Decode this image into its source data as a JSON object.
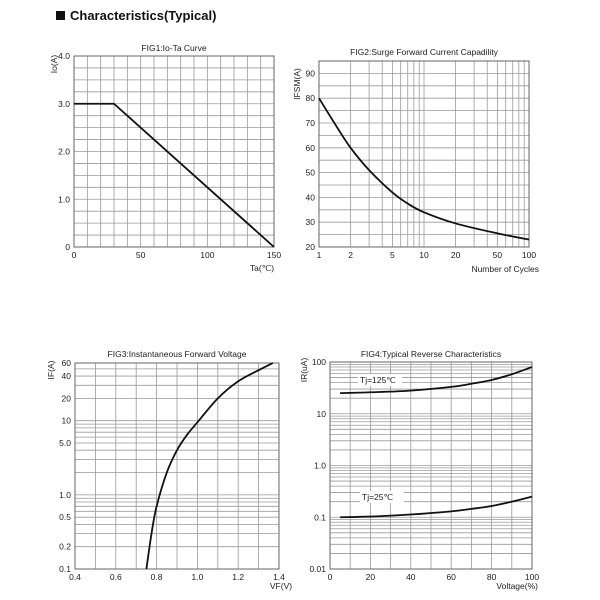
{
  "header": {
    "title": "Characteristics(Typical)"
  },
  "chart_data": [
    {
      "type": "line",
      "title": "FIG1:Io-Ta Curve",
      "xlabel": "Ta(℃)",
      "ylabel": "Io(A)",
      "xscale": "linear",
      "yscale": "linear",
      "xlim": [
        0,
        150
      ],
      "ylim": [
        0,
        4
      ],
      "xticks": [
        0,
        50,
        100,
        150
      ],
      "xtick_labels": [
        "0",
        "50",
        "100",
        "150"
      ],
      "yticks": [
        0,
        1,
        2,
        3,
        4
      ],
      "ytick_labels": [
        "0",
        "1.0",
        "2.0",
        "3.0",
        "4.0"
      ],
      "xgrid": [
        0,
        10,
        20,
        30,
        40,
        50,
        60,
        70,
        80,
        90,
        100,
        110,
        120,
        130,
        140,
        150
      ],
      "ygrid": [
        0,
        0.25,
        0.5,
        0.75,
        1,
        1.25,
        1.5,
        1.75,
        2,
        2.25,
        2.5,
        2.75,
        3,
        3.25,
        3.5,
        3.75,
        4
      ],
      "series": [
        {
          "name": "Io",
          "x": [
            0,
            30,
            150
          ],
          "y": [
            3.0,
            3.0,
            0
          ]
        }
      ]
    },
    {
      "type": "line",
      "title": "FIG2:Surge Forward Current Capadility",
      "xlabel": "Number of Cycles",
      "ylabel": "IFSM(A)",
      "xscale": "log",
      "yscale": "linear",
      "xlim": [
        1,
        100
      ],
      "ylim": [
        20,
        95
      ],
      "xticks": [
        1,
        2,
        5,
        10,
        20,
        50,
        100
      ],
      "xtick_labels": [
        "1",
        "2",
        "5",
        "10",
        "20",
        "50",
        "100"
      ],
      "yticks": [
        20,
        30,
        40,
        50,
        60,
        70,
        80,
        90
      ],
      "ytick_labels": [
        "20",
        "30",
        "40",
        "50",
        "60",
        "70",
        "80",
        "90"
      ],
      "xgrid": [
        1,
        2,
        3,
        4,
        5,
        6,
        7,
        8,
        9,
        10,
        20,
        30,
        40,
        50,
        60,
        70,
        80,
        90,
        100
      ],
      "ygrid": [
        20,
        25,
        30,
        35,
        40,
        45,
        50,
        55,
        60,
        65,
        70,
        75,
        80,
        85,
        90,
        95
      ],
      "series": [
        {
          "name": "IFSM",
          "x": [
            1,
            1.5,
            2,
            3,
            5,
            7,
            10,
            20,
            50,
            100
          ],
          "y": [
            80,
            68,
            60,
            51,
            42,
            37.5,
            34,
            29.5,
            25.5,
            23
          ]
        }
      ]
    },
    {
      "type": "line",
      "title": "FIG3:Instantaneous Forward Voltage",
      "xlabel": "VF(V)",
      "ylabel": "IF(A)",
      "xscale": "linear",
      "yscale": "log",
      "xlim": [
        0.4,
        1.4
      ],
      "ylim": [
        0.1,
        60
      ],
      "xticks": [
        0.4,
        0.6,
        0.8,
        1.0,
        1.2,
        1.4
      ],
      "xtick_labels": [
        "0.4",
        "0.6",
        "0.8",
        "1.0",
        "1.2",
        "1.4"
      ],
      "yticks": [
        0.1,
        0.2,
        0.5,
        1,
        5,
        10,
        20,
        40,
        60
      ],
      "ytick_labels": [
        "0.1",
        "0.2",
        "0.5",
        "1.0",
        "5.0",
        "10",
        "20",
        "40",
        "60"
      ],
      "xgrid": [
        0.4,
        0.5,
        0.6,
        0.7,
        0.8,
        0.9,
        1.0,
        1.1,
        1.2,
        1.3,
        1.4
      ],
      "ygrid": [
        0.1,
        0.2,
        0.3,
        0.4,
        0.5,
        0.6,
        0.7,
        0.8,
        0.9,
        1,
        2,
        3,
        4,
        5,
        6,
        7,
        8,
        9,
        10,
        20,
        30,
        40,
        50,
        60
      ],
      "series": [
        {
          "name": "IF",
          "x": [
            0.75,
            0.775,
            0.8,
            0.85,
            0.9,
            0.95,
            1.0,
            1.1,
            1.2,
            1.3,
            1.37
          ],
          "y": [
            0.1,
            0.3,
            0.7,
            2,
            4,
            6.5,
            9.5,
            20,
            34,
            48,
            60
          ]
        }
      ]
    },
    {
      "type": "line",
      "title": "FIG4:Typical Reverse Characteristics",
      "xlabel": "Voltage(%)",
      "ylabel": "IR(uA)",
      "xscale": "linear",
      "yscale": "log",
      "xlim": [
        0,
        100
      ],
      "ylim": [
        0.01,
        100
      ],
      "xticks": [
        0,
        20,
        40,
        60,
        80,
        100
      ],
      "xtick_labels": [
        "0",
        "20",
        "40",
        "60",
        "80",
        "100"
      ],
      "yticks": [
        0.01,
        0.1,
        1,
        10,
        100
      ],
      "ytick_labels": [
        "0.01",
        "0.1",
        "1.0",
        "10",
        "100"
      ],
      "xgrid": [
        0,
        10,
        20,
        30,
        40,
        50,
        60,
        70,
        80,
        90,
        100
      ],
      "ygrid": [
        0.01,
        0.02,
        0.03,
        0.04,
        0.05,
        0.06,
        0.07,
        0.08,
        0.09,
        0.1,
        0.2,
        0.3,
        0.4,
        0.5,
        0.6,
        0.7,
        0.8,
        0.9,
        1,
        2,
        3,
        4,
        5,
        6,
        7,
        8,
        9,
        10,
        20,
        30,
        40,
        50,
        60,
        70,
        80,
        90,
        100
      ],
      "series": [
        {
          "name": "Tj=125℃",
          "x": [
            5,
            20,
            40,
            60,
            70,
            80,
            90,
            100
          ],
          "y": [
            25,
            26,
            28,
            33,
            38,
            45,
            58,
            80
          ]
        },
        {
          "name": "Tj=25℃",
          "x": [
            5,
            20,
            40,
            60,
            70,
            80,
            90,
            100
          ],
          "y": [
            0.1,
            0.103,
            0.113,
            0.13,
            0.145,
            0.165,
            0.2,
            0.25
          ]
        }
      ],
      "annotations": [
        "Tj=125℃",
        "Tj=25℃"
      ]
    }
  ]
}
